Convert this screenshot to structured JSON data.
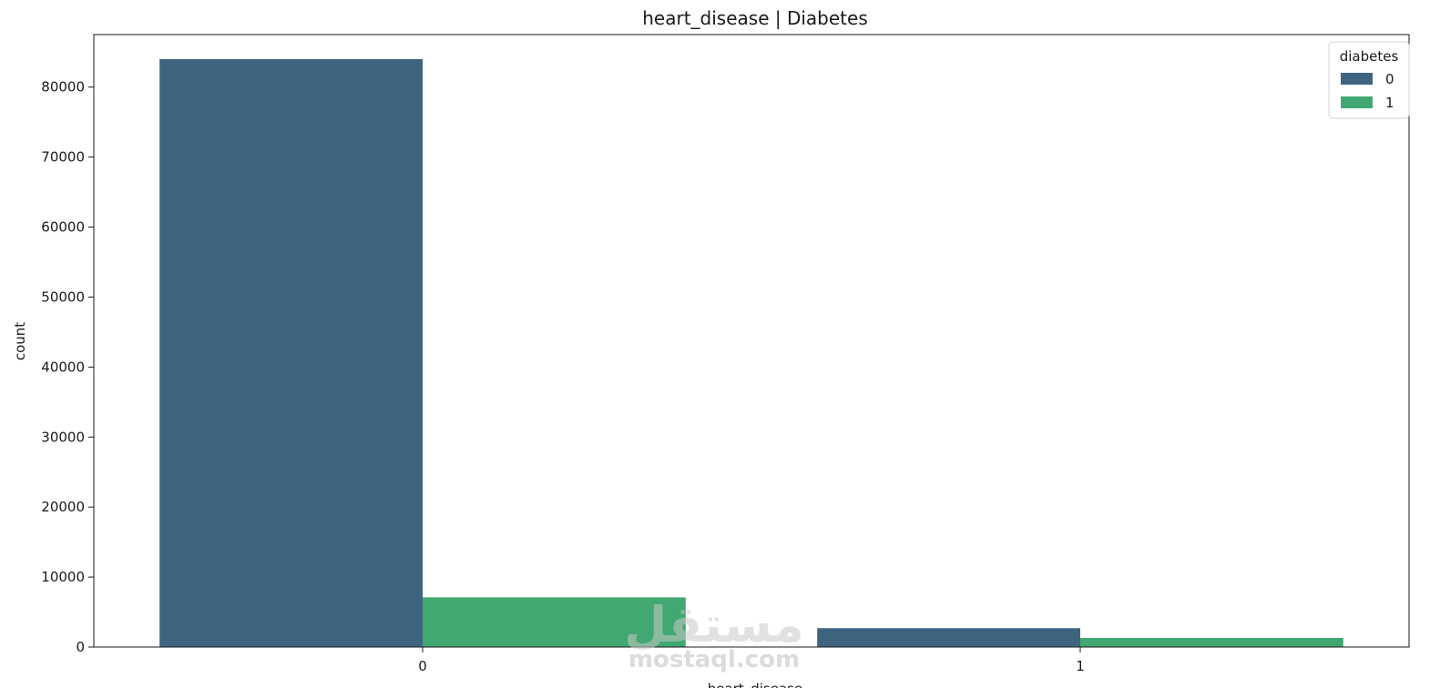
{
  "chart_data": {
    "type": "bar",
    "title": "heart_disease  |  Diabetes",
    "xlabel": "heart_disease",
    "ylabel": "count",
    "categories": [
      "0",
      "1"
    ],
    "series": [
      {
        "name": "0",
        "values": [
          84000,
          2700
        ],
        "color": "#3e6480"
      },
      {
        "name": "1",
        "values": [
          7100,
          1300
        ],
        "color": "#41a872"
      }
    ],
    "ylim": [
      0,
      87500
    ],
    "yticks": [
      0,
      10000,
      20000,
      30000,
      40000,
      50000,
      60000,
      70000,
      80000
    ],
    "ytick_labels": [
      "0",
      "10000",
      "20000",
      "30000",
      "40000",
      "50000",
      "60000",
      "70000",
      "80000"
    ],
    "legend": {
      "title": "diabetes",
      "position": "top-right"
    },
    "grid": false
  },
  "watermark": {
    "arabic": "مستقل",
    "latin": "mostaql.com"
  }
}
